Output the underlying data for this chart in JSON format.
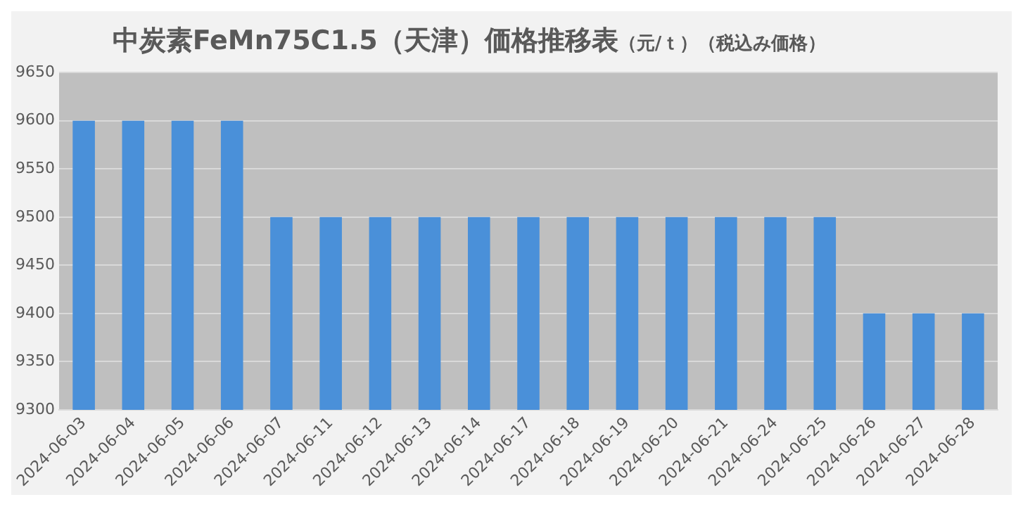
{
  "chart_data": {
    "type": "bar",
    "title": "中炭素FeMn75C1.5（天津）価格推移表",
    "subtitle": "（元/ｔ）（税込み価格）",
    "categories": [
      "2024-06-03",
      "2024-06-04",
      "2024-06-05",
      "2024-06-06",
      "2024-06-07",
      "2024-06-11",
      "2024-06-12",
      "2024-06-13",
      "2024-06-14",
      "2024-06-17",
      "2024-06-18",
      "2024-06-19",
      "2024-06-20",
      "2024-06-21",
      "2024-06-24",
      "2024-06-25",
      "2024-06-26",
      "2024-06-27",
      "2024-06-28"
    ],
    "values": [
      9600,
      9600,
      9600,
      9600,
      9500,
      9500,
      9500,
      9500,
      9500,
      9500,
      9500,
      9500,
      9500,
      9500,
      9500,
      9500,
      9400,
      9400,
      9400
    ],
    "color": "#4a90d9",
    "ylim": [
      9300,
      9650
    ],
    "yticks": [
      9300,
      9350,
      9400,
      9450,
      9500,
      9550,
      9600,
      9650
    ],
    "grid": "y",
    "legend": false
  }
}
